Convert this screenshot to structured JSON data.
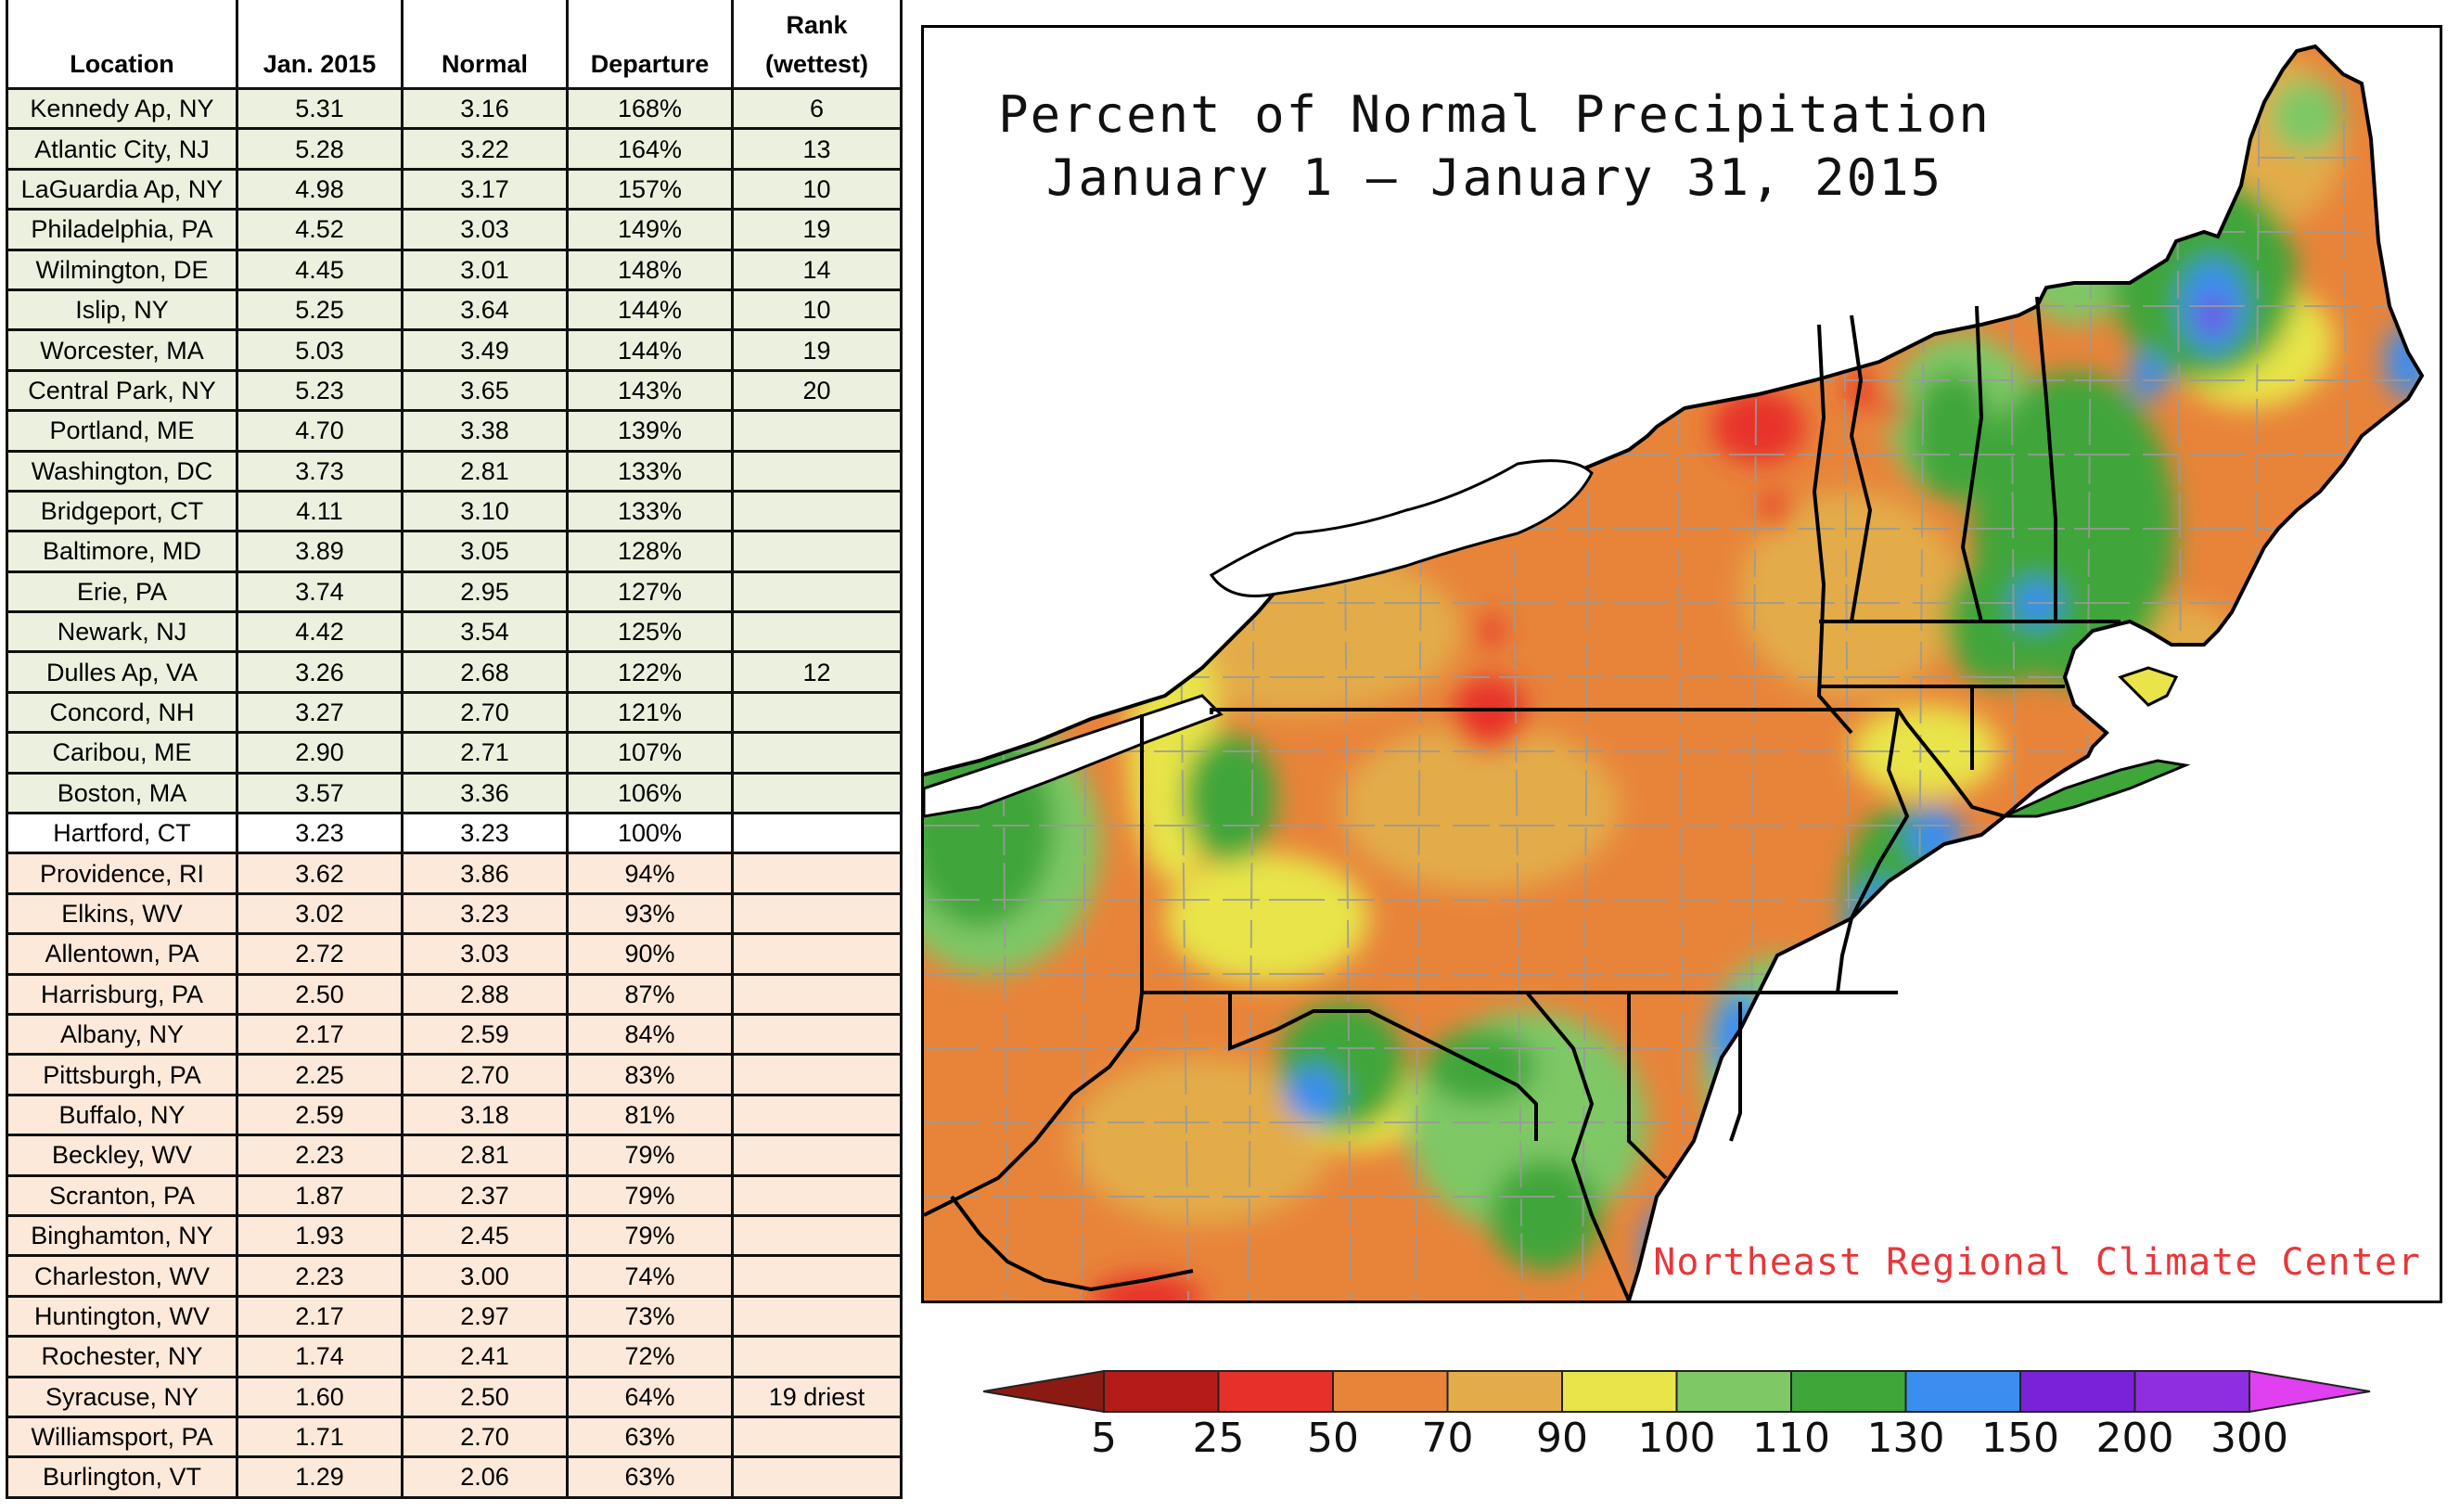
{
  "table": {
    "headers": {
      "location": "Location",
      "jan": "Jan. 2015",
      "normal": "Normal",
      "departure": "Departure",
      "rank_line1": "Rank",
      "rank_line2": "(wettest)"
    },
    "rows": [
      {
        "location": "Kennedy Ap, NY",
        "jan": "5.31",
        "normal": "3.16",
        "departure": "168%",
        "rank": "6",
        "group": "wet"
      },
      {
        "location": "Atlantic City, NJ",
        "jan": "5.28",
        "normal": "3.22",
        "departure": "164%",
        "rank": "13",
        "group": "wet"
      },
      {
        "location": "LaGuardia Ap, NY",
        "jan": "4.98",
        "normal": "3.17",
        "departure": "157%",
        "rank": "10",
        "group": "wet"
      },
      {
        "location": "Philadelphia, PA",
        "jan": "4.52",
        "normal": "3.03",
        "departure": "149%",
        "rank": "19",
        "group": "wet"
      },
      {
        "location": "Wilmington, DE",
        "jan": "4.45",
        "normal": "3.01",
        "departure": "148%",
        "rank": "14",
        "group": "wet"
      },
      {
        "location": "Islip, NY",
        "jan": "5.25",
        "normal": "3.64",
        "departure": "144%",
        "rank": "10",
        "group": "wet"
      },
      {
        "location": "Worcester, MA",
        "jan": "5.03",
        "normal": "3.49",
        "departure": "144%",
        "rank": "19",
        "group": "wet"
      },
      {
        "location": "Central Park, NY",
        "jan": "5.23",
        "normal": "3.65",
        "departure": "143%",
        "rank": "20",
        "group": "wet"
      },
      {
        "location": "Portland, ME",
        "jan": "4.70",
        "normal": "3.38",
        "departure": "139%",
        "rank": "",
        "group": "wet"
      },
      {
        "location": "Washington, DC",
        "jan": "3.73",
        "normal": "2.81",
        "departure": "133%",
        "rank": "",
        "group": "wet"
      },
      {
        "location": "Bridgeport, CT",
        "jan": "4.11",
        "normal": "3.10",
        "departure": "133%",
        "rank": "",
        "group": "wet"
      },
      {
        "location": "Baltimore, MD",
        "jan": "3.89",
        "normal": "3.05",
        "departure": "128%",
        "rank": "",
        "group": "wet"
      },
      {
        "location": "Erie, PA",
        "jan": "3.74",
        "normal": "2.95",
        "departure": "127%",
        "rank": "",
        "group": "wet"
      },
      {
        "location": "Newark, NJ",
        "jan": "4.42",
        "normal": "3.54",
        "departure": "125%",
        "rank": "",
        "group": "wet"
      },
      {
        "location": "Dulles Ap, VA",
        "jan": "3.26",
        "normal": "2.68",
        "departure": "122%",
        "rank": "12",
        "group": "wet"
      },
      {
        "location": "Concord, NH",
        "jan": "3.27",
        "normal": "2.70",
        "departure": "121%",
        "rank": "",
        "group": "wet"
      },
      {
        "location": "Caribou, ME",
        "jan": "2.90",
        "normal": "2.71",
        "departure": "107%",
        "rank": "",
        "group": "wet"
      },
      {
        "location": "Boston, MA",
        "jan": "3.57",
        "normal": "3.36",
        "departure": "106%",
        "rank": "",
        "group": "wet"
      },
      {
        "location": "Hartford, CT",
        "jan": "3.23",
        "normal": "3.23",
        "departure": "100%",
        "rank": "",
        "group": "neutral"
      },
      {
        "location": "Providence, RI",
        "jan": "3.62",
        "normal": "3.86",
        "departure": "94%",
        "rank": "",
        "group": "dry"
      },
      {
        "location": "Elkins, WV",
        "jan": "3.02",
        "normal": "3.23",
        "departure": "93%",
        "rank": "",
        "group": "dry"
      },
      {
        "location": "Allentown, PA",
        "jan": "2.72",
        "normal": "3.03",
        "departure": "90%",
        "rank": "",
        "group": "dry"
      },
      {
        "location": "Harrisburg, PA",
        "jan": "2.50",
        "normal": "2.88",
        "departure": "87%",
        "rank": "",
        "group": "dry"
      },
      {
        "location": "Albany, NY",
        "jan": "2.17",
        "normal": "2.59",
        "departure": "84%",
        "rank": "",
        "group": "dry"
      },
      {
        "location": "Pittsburgh, PA",
        "jan": "2.25",
        "normal": "2.70",
        "departure": "83%",
        "rank": "",
        "group": "dry"
      },
      {
        "location": "Buffalo, NY",
        "jan": "2.59",
        "normal": "3.18",
        "departure": "81%",
        "rank": "",
        "group": "dry"
      },
      {
        "location": "Beckley, WV",
        "jan": "2.23",
        "normal": "2.81",
        "departure": "79%",
        "rank": "",
        "group": "dry"
      },
      {
        "location": "Scranton, PA",
        "jan": "1.87",
        "normal": "2.37",
        "departure": "79%",
        "rank": "",
        "group": "dry"
      },
      {
        "location": "Binghamton, NY",
        "jan": "1.93",
        "normal": "2.45",
        "departure": "79%",
        "rank": "",
        "group": "dry"
      },
      {
        "location": "Charleston, WV",
        "jan": "2.23",
        "normal": "3.00",
        "departure": "74%",
        "rank": "",
        "group": "dry"
      },
      {
        "location": "Huntington, WV",
        "jan": "2.17",
        "normal": "2.97",
        "departure": "73%",
        "rank": "",
        "group": "dry"
      },
      {
        "location": "Rochester, NY",
        "jan": "1.74",
        "normal": "2.41",
        "departure": "72%",
        "rank": "",
        "group": "dry"
      },
      {
        "location": "Syracuse, NY",
        "jan": "1.60",
        "normal": "2.50",
        "departure": "64%",
        "rank": "19 driest",
        "group": "dry"
      },
      {
        "location": "Williamsport, PA",
        "jan": "1.71",
        "normal": "2.70",
        "departure": "63%",
        "rank": "",
        "group": "dry"
      },
      {
        "location": "Burlington, VT",
        "jan": "1.29",
        "normal": "2.06",
        "departure": "63%",
        "rank": "",
        "group": "dry"
      }
    ]
  },
  "map": {
    "title_line1": "Percent of Normal Precipitation",
    "title_line2": "January 1 — January 31, 2015",
    "credit": "Northeast Regional Climate Center"
  },
  "legend": {
    "labels": [
      "5",
      "25",
      "50",
      "70",
      "90",
      "100",
      "110",
      "130",
      "150",
      "200",
      "300"
    ],
    "colors": [
      "#8b1a12",
      "#b31c18",
      "#e8302a",
      "#e8843a",
      "#e3ac48",
      "#e8e44a",
      "#7ec866",
      "#3fa63a",
      "#3a8ef0",
      "#7a22d8",
      "#8f2ee0",
      "#e040f0"
    ]
  }
}
